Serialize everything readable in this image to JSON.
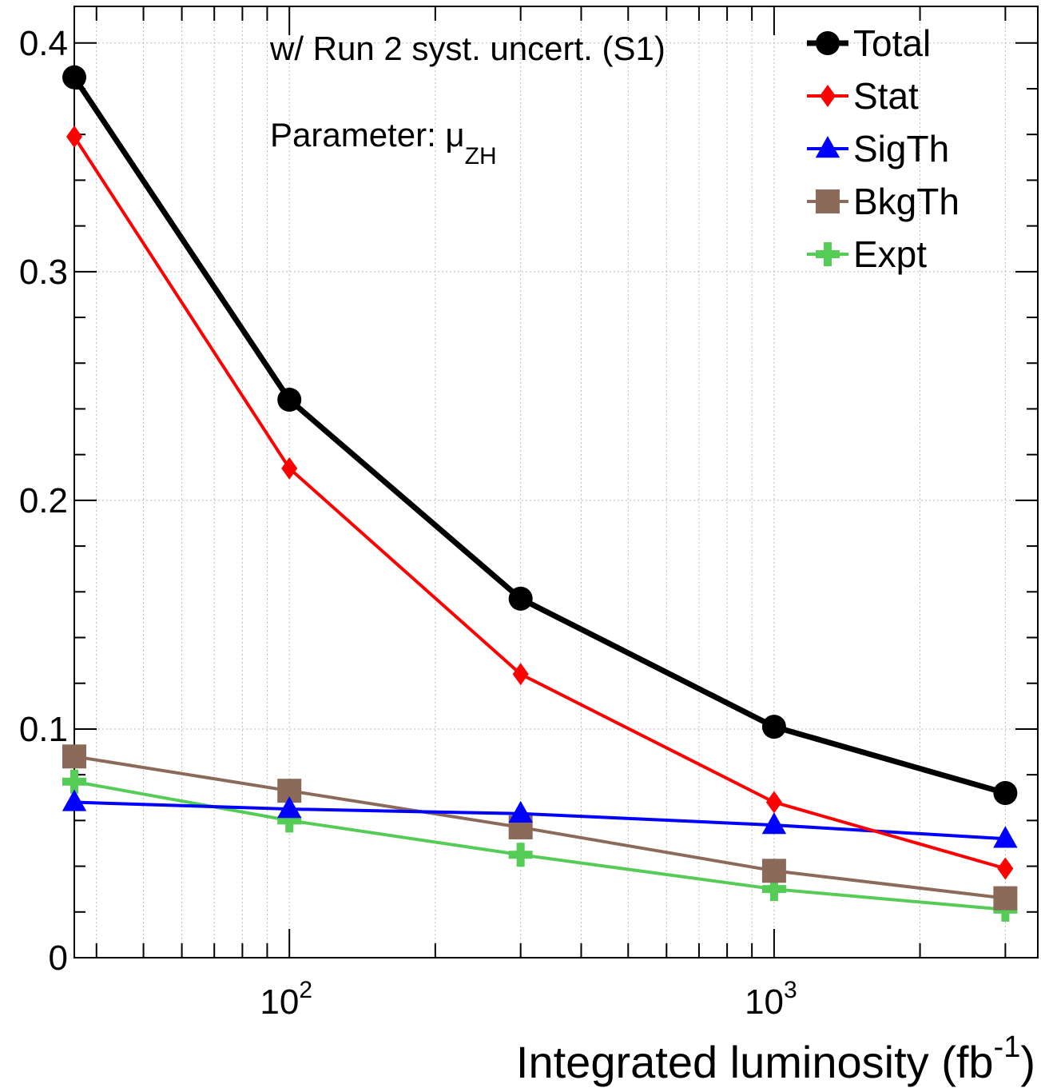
{
  "chart_data": {
    "type": "line",
    "x_scale": "log",
    "xlim": [
      36,
      3500
    ],
    "ylim": [
      0,
      0.416
    ],
    "xlabel": "Integrated luminosity (fb",
    "xlabel_sup": "-1",
    "xlabel_close": ")",
    "ylabel": "",
    "grid": true,
    "legend_position": "top-right",
    "y_ticks": [
      0,
      0.1,
      0.2,
      0.3,
      0.4
    ],
    "y_tick_labels": [
      "0",
      "0.1",
      "0.2",
      "0.3",
      "0.4"
    ],
    "x_ticks": [
      100,
      1000
    ],
    "x_tick_base": "10",
    "x_tick_exps": [
      "2",
      "3"
    ],
    "annotations": {
      "text1": "w/ Run 2 syst. uncert. (S1)",
      "text2_main": "Parameter: μ",
      "text2_sub": "ZH"
    },
    "x": [
      36,
      100,
      300,
      1000,
      3000
    ],
    "series": [
      {
        "name": "Total",
        "color": "#000000",
        "marker": "circle",
        "values": [
          0.385,
          0.244,
          0.157,
          0.101,
          0.072
        ]
      },
      {
        "name": "Stat",
        "color": "#ff0000",
        "marker": "diamond",
        "values": [
          0.359,
          0.214,
          0.124,
          0.068,
          0.039
        ]
      },
      {
        "name": "SigTh",
        "color": "#0000ff",
        "marker": "triangle",
        "values": [
          0.068,
          0.065,
          0.063,
          0.058,
          0.052
        ]
      },
      {
        "name": "BkgTh",
        "color": "#8b6a5a",
        "marker": "square",
        "values": [
          0.088,
          0.073,
          0.057,
          0.038,
          0.026
        ]
      },
      {
        "name": "Expt",
        "color": "#55cc55",
        "marker": "cross",
        "values": [
          0.077,
          0.06,
          0.045,
          0.03,
          0.021
        ]
      }
    ]
  }
}
